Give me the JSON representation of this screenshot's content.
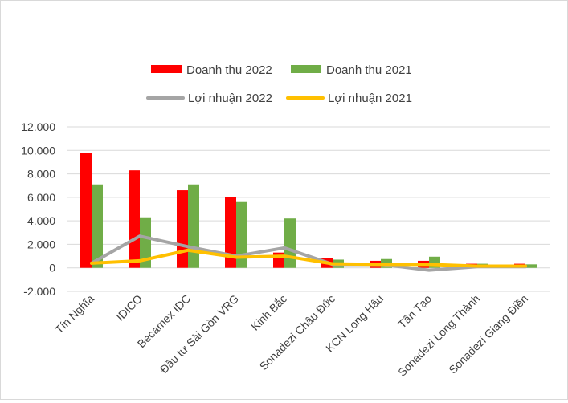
{
  "chart_data": {
    "type": "bar",
    "categories": [
      "Tín Nghĩa",
      "IDICO",
      "Becamex IDC",
      "Đầu tư Sài Gòn VRG",
      "Kinh Bắc",
      "Sonadezi Châu Đức",
      "KCN Long Hậu",
      "Tân Tạo",
      "Sonadezi Long Thành",
      "Sonadezi Giang Điền"
    ],
    "series": [
      {
        "name": "Doanh thu 2022",
        "kind": "bar",
        "color": "#ff0000",
        "values": [
          9800,
          8300,
          6600,
          6000,
          1300,
          850,
          600,
          600,
          350,
          350
        ]
      },
      {
        "name": "Doanh thu 2021",
        "kind": "bar",
        "color": "#70ad47",
        "values": [
          7100,
          4300,
          7100,
          5600,
          4200,
          700,
          750,
          950,
          350,
          300
        ]
      },
      {
        "name": "Lợi nhuận 2022",
        "kind": "line",
        "color": "#a5a5a5",
        "values": [
          400,
          2700,
          1800,
          1000,
          1700,
          300,
          300,
          -200,
          100,
          100
        ]
      },
      {
        "name": "Lợi nhuận 2021",
        "kind": "line",
        "color": "#ffc000",
        "values": [
          400,
          600,
          1500,
          900,
          1000,
          350,
          300,
          300,
          150,
          150
        ]
      }
    ],
    "yticks": [
      "12.000",
      "10.000",
      "8.000",
      "6.000",
      "4.000",
      "2.000",
      "0",
      "-2.000"
    ],
    "ylim": [
      -2000,
      12000
    ],
    "grid": true,
    "legend_position": "top"
  }
}
